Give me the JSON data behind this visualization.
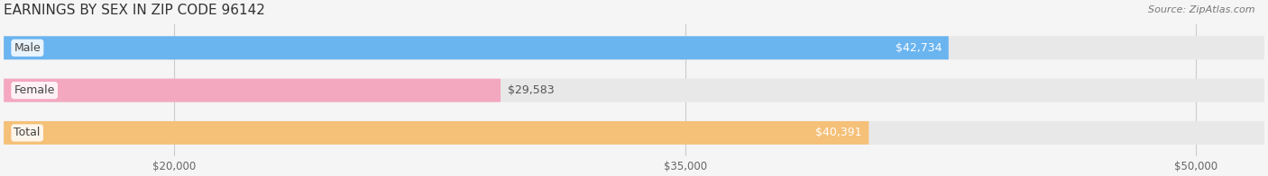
{
  "title": "EARNINGS BY SEX IN ZIP CODE 96142",
  "source": "Source: ZipAtlas.com",
  "categories": [
    "Male",
    "Female",
    "Total"
  ],
  "values": [
    42734,
    29583,
    40391
  ],
  "bar_colors": [
    "#6ab4f0",
    "#f4a8c0",
    "#f5c077"
  ],
  "bar_bg_color": "#e8e8e8",
  "label_colors": [
    "#ffffff",
    "#555555",
    "#ffffff"
  ],
  "xlim": [
    15000,
    52000
  ],
  "xticks": [
    20000,
    35000,
    50000
  ],
  "xtick_labels": [
    "$20,000",
    "$35,000",
    "$50,000"
  ],
  "figsize": [
    14.06,
    1.96
  ],
  "dpi": 100,
  "bar_height": 0.55,
  "title_fontsize": 11,
  "label_fontsize": 9,
  "tick_fontsize": 8.5,
  "source_fontsize": 8
}
